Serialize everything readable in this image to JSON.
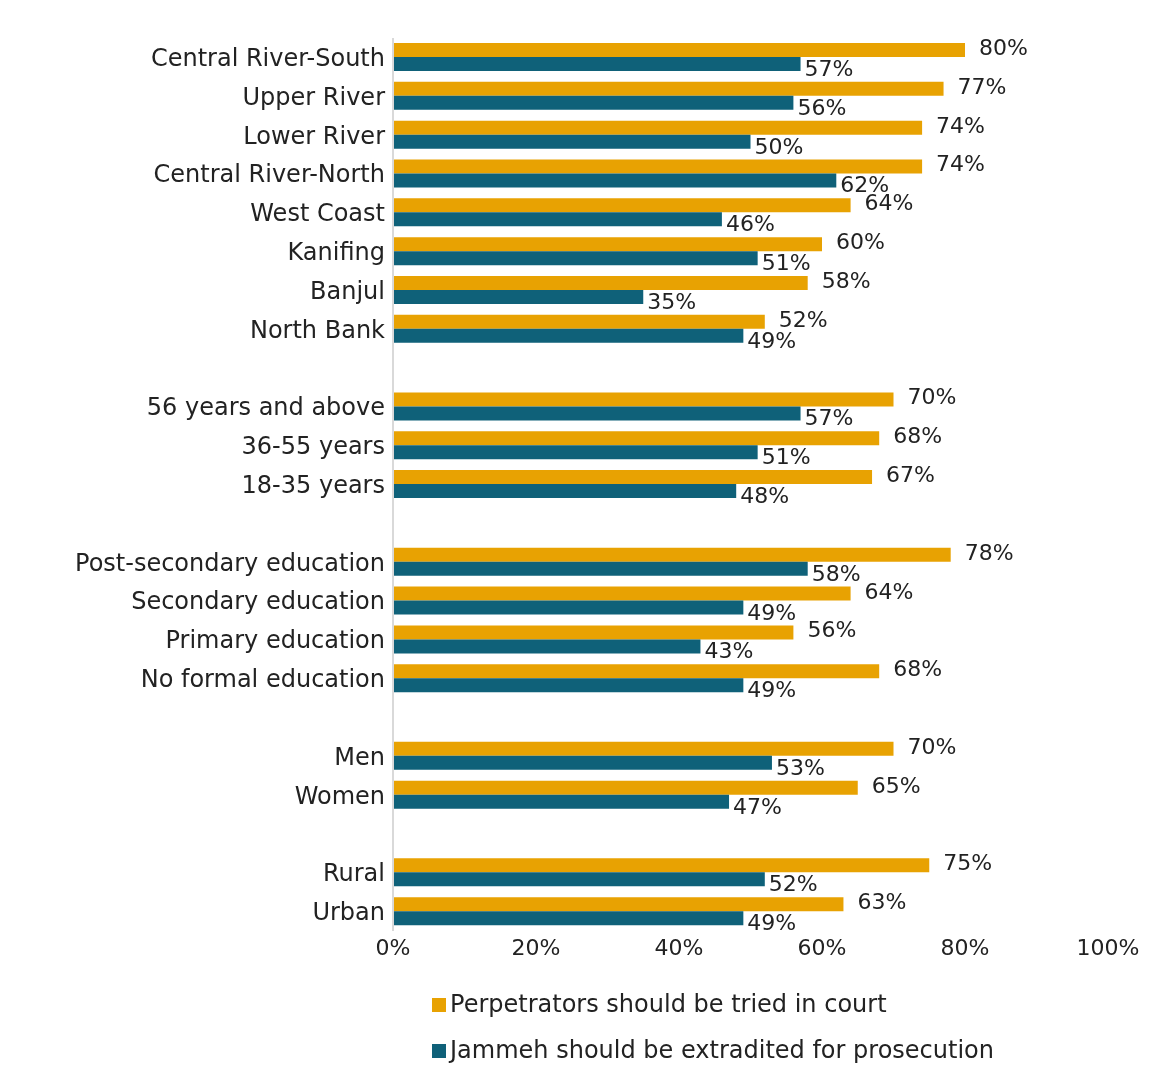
{
  "chart_data": {
    "type": "bar",
    "orientation": "horizontal",
    "categories": [
      "Central River-South",
      "Upper River",
      "Lower River",
      "Central River-North",
      "West Coast",
      "Kanifing",
      "Banjul",
      "North Bank",
      null,
      "56 years and above",
      "36-55 years",
      "18-35 years",
      null,
      "Post-secondary education",
      "Secondary education",
      "Primary education",
      "No formal education",
      null,
      "Men",
      "Women",
      null,
      "Rural",
      "Urban"
    ],
    "series": [
      {
        "name": "Perpetrators should be tried in court",
        "color": "#e8a202",
        "values": [
          80,
          77,
          74,
          74,
          64,
          60,
          58,
          52,
          null,
          70,
          68,
          67,
          null,
          78,
          64,
          56,
          68,
          null,
          70,
          65,
          null,
          75,
          63
        ],
        "value_labels": [
          "80%",
          "77%",
          "74%",
          "74%",
          "64%",
          "60%",
          "58%",
          "52%",
          null,
          "70%",
          "68%",
          "67%",
          null,
          "78%",
          "64%",
          "56%",
          "68%",
          null,
          "70%",
          "65%",
          null,
          "75%",
          "63%"
        ]
      },
      {
        "name": "Jammeh should be extradited for prosecution",
        "color": "#0f6179",
        "values": [
          57,
          56,
          50,
          62,
          46,
          51,
          35,
          49,
          null,
          57,
          51,
          48,
          null,
          58,
          49,
          43,
          49,
          null,
          53,
          47,
          null,
          52,
          49
        ],
        "value_labels": [
          "57%",
          "56%",
          "50%",
          "62%",
          "46%",
          "51%",
          "35%",
          "49%",
          null,
          "57%",
          "51%",
          "48%",
          null,
          "58%",
          "49%",
          "43%",
          "49%",
          null,
          "53%",
          "47%",
          null,
          "52%",
          "49%"
        ]
      }
    ],
    "xlim": [
      0,
      100
    ],
    "xticks": [
      {
        "value": 0,
        "label": "0%"
      },
      {
        "value": 20,
        "label": "20%"
      },
      {
        "value": 40,
        "label": "40%"
      },
      {
        "value": 60,
        "label": "60%"
      },
      {
        "value": 80,
        "label": "80%"
      },
      {
        "value": 100,
        "label": "100%"
      }
    ],
    "legend": "bottom"
  }
}
